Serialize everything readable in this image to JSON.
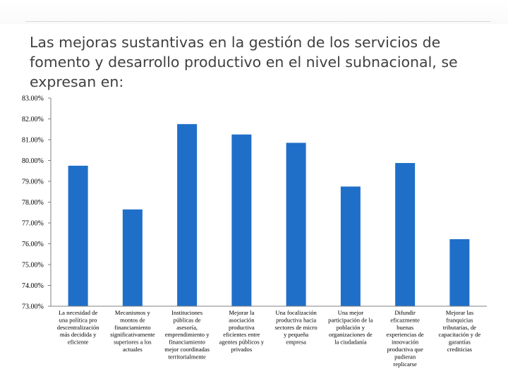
{
  "slide": {
    "title": "Las mejoras sustantivas en la gestión de los servicios de fomento y desarrollo productivo en el nivel subnacional, se expresan en:"
  },
  "colors": {
    "bar": "#1f6fc9",
    "axis": "#808080",
    "title": "#404040"
  },
  "chart_data": {
    "type": "bar",
    "title": "",
    "xlabel": "",
    "ylabel": "",
    "ylim": [
      73,
      83
    ],
    "y_ticks": [
      73,
      74,
      75,
      76,
      77,
      78,
      79,
      80,
      81,
      82,
      83
    ],
    "y_tick_labels": [
      "73.00%",
      "74.00%",
      "75.00%",
      "76.00%",
      "77.00%",
      "78.00%",
      "79.00%",
      "80.00%",
      "81.00%",
      "82.00%",
      "83.00%"
    ],
    "grid": false,
    "categories": [
      "La necesidad de una política pro descentralización más decidida y eficiente",
      "Mecanismos y montos de financiamiento significativamente superiores a los actuales",
      "Instituciones públicas de asesoría, emprendimiento y financiamiento mejor coordinadas territorialmente",
      "Mejorar la asociación productiva eficientes entre agentes públicos y privados",
      "Una focalización productiva hacia sectores de micro y pequeña empresa",
      "Una mejor participación de la población y organizaciones de la ciudadanía",
      "Difundir eficazmente buenas experiencias de innovación productiva que pudieran replicarse",
      "Mejorar las franquicias tributarias, de capacitación y de garantías crediticias"
    ],
    "category_lines": [
      [
        "La necesidad de",
        "una política pro",
        "descentralización",
        "más decidida y",
        "eficiente"
      ],
      [
        "Mecanismos y",
        "montos de",
        "financiamiento",
        "significativamente",
        "superiores a los",
        "actuales"
      ],
      [
        "Instituciones",
        "públicas de",
        "asesoría,",
        "emprendimiento y",
        "financiamiento",
        "mejor coordinadas",
        "territorialmente"
      ],
      [
        "Mejorar la",
        "asociación",
        "productiva",
        "eficientes entre",
        "agentes públicos y",
        "privados"
      ],
      [
        "Una focalización",
        "productiva hacia",
        "sectores de micro",
        "y pequeña",
        "empresa"
      ],
      [
        "Una mejor",
        "participación de la",
        "población y",
        "organizaciones de",
        "la ciudadanía"
      ],
      [
        "Difundir",
        "eficazmente",
        "buenas",
        "experiencias de",
        "innovación",
        "productiva que",
        "pudieran",
        "replicarse"
      ],
      [
        "Mejorar las",
        "franquicias",
        "tributarias, de",
        "capacitación y de",
        "garantías",
        "crediticias"
      ]
    ],
    "values": [
      79.75,
      77.65,
      81.75,
      81.25,
      80.85,
      78.75,
      79.88,
      76.22
    ]
  }
}
